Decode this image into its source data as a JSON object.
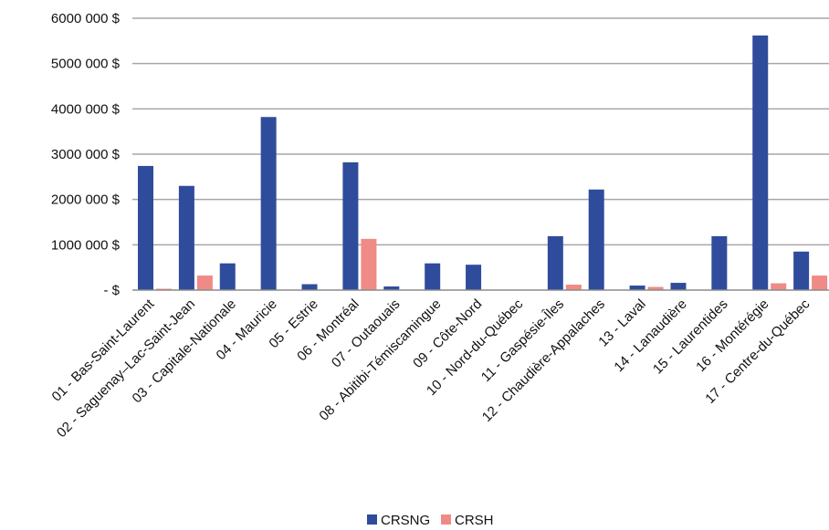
{
  "chart_data": {
    "type": "bar",
    "title": "",
    "xlabel": "",
    "ylabel": "",
    "categories": [
      "01 - Bas-Saint-Laurent",
      "02 - Saguenay–Lac-Saint-Jean",
      "03 - Capitale-Nationale",
      "04 - Mauricie",
      "05 - Estrie",
      "06 - Montréal",
      "07 - Outaouais",
      "08 - Abitibi-Témiscamingue",
      "09 - Côte-Nord",
      "10 - Nord-du-Québec",
      "11 - Gaspésie-Îles",
      "12 - Chaudière-Appalaches",
      "13 - Laval",
      "14 - Lanaudière",
      "15 - Laurentides",
      "16 - Montérégie",
      "17 - Centre-du-Québec"
    ],
    "series": [
      {
        "name": "CRSNG",
        "color": "#2f4c9c",
        "values": [
          2740000,
          2300000,
          590000,
          3820000,
          130000,
          2820000,
          80000,
          590000,
          560000,
          0,
          1190000,
          2220000,
          100000,
          160000,
          1190000,
          5620000,
          850000
        ]
      },
      {
        "name": "CRSH",
        "color": "#ef8a86",
        "values": [
          30000,
          320000,
          0,
          0,
          0,
          1130000,
          0,
          0,
          0,
          0,
          120000,
          0,
          70000,
          0,
          0,
          150000,
          320000
        ]
      }
    ],
    "ylim": [
      0,
      6000000
    ],
    "yticks": [
      0,
      1000000,
      2000000,
      3000000,
      4000000,
      5000000,
      6000000
    ],
    "ytick_labels": [
      "-   $",
      "1000 000 $",
      "2000 000 $",
      "3000 000 $",
      "4000 000 $",
      "5000 000 $",
      "6000 000 $"
    ],
    "grid": true,
    "legend": "bottom-center"
  }
}
